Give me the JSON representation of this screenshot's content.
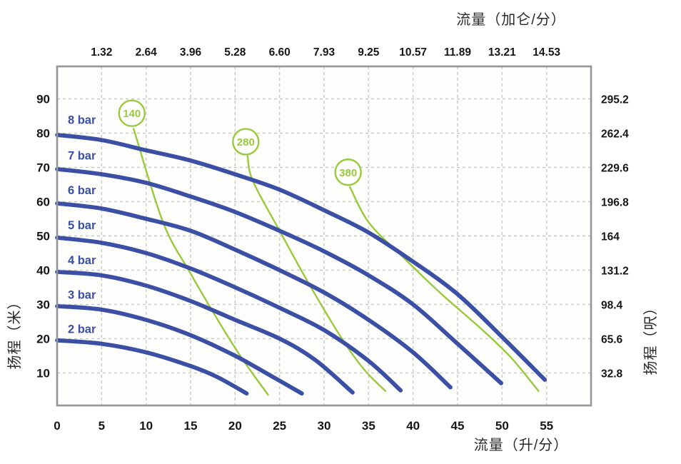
{
  "colors": {
    "curve_blue": "#3b50a4",
    "speed_green": "#99c93c",
    "grid": "#c7c9c5",
    "border": "#94979a",
    "tick_text": "#161616",
    "plot_background": "#fdfdfb"
  },
  "chart_data": {
    "type": "line",
    "description": "Pump performance curves: head vs flow for discharge pressures 2-8 bar with speed lines 140/280/380",
    "x_axis_bottom": {
      "label": "流量（升/分）",
      "unit": "L/min",
      "range": [
        0,
        60
      ],
      "tick_values": [
        0,
        5,
        10,
        15,
        20,
        25,
        30,
        35,
        40,
        45,
        50,
        55
      ]
    },
    "x_axis_top": {
      "label": "流量（加仑/分）",
      "unit": "gal/min",
      "tick_labels": [
        "1.32",
        "2.64",
        "3.96",
        "5.28",
        "6.60",
        "7.93",
        "9.25",
        "10.57",
        "11.89",
        "13.21",
        "14.53"
      ],
      "at_lpm": [
        5,
        10,
        15,
        20,
        25,
        30,
        35,
        40,
        45,
        50,
        55
      ]
    },
    "y_axis_left": {
      "label": "扬程（米）",
      "unit": "m",
      "range": [
        0.5,
        99.5
      ],
      "tick_values": [
        90,
        80,
        70,
        60,
        50,
        40,
        30,
        20,
        10
      ]
    },
    "y_axis_right": {
      "label": "扬程（呎）",
      "unit": "ft",
      "tick_labels": [
        "295.2",
        "262.4",
        "229.6",
        "196.8",
        "164",
        "131.2",
        "98.4",
        "65.6",
        "32.8"
      ],
      "at_m": [
        90,
        80,
        70,
        60,
        50,
        40,
        30,
        20,
        10
      ]
    },
    "series": [
      {
        "name": "8 bar",
        "label_at": [
          1.2,
          84.0
        ],
        "points": [
          [
            0,
            79.5
          ],
          [
            5,
            78
          ],
          [
            10,
            75
          ],
          [
            15,
            72
          ],
          [
            20,
            68
          ],
          [
            25,
            63.5
          ],
          [
            30,
            57.5
          ],
          [
            35,
            51
          ],
          [
            40,
            42.5
          ],
          [
            45,
            33
          ],
          [
            50,
            20.5
          ],
          [
            54.8,
            8
          ]
        ]
      },
      {
        "name": "7 bar",
        "label_at": [
          1.2,
          73.6
        ],
        "points": [
          [
            0,
            69.5
          ],
          [
            5,
            68
          ],
          [
            10,
            65.5
          ],
          [
            15,
            61.5
          ],
          [
            20,
            57
          ],
          [
            25,
            51.5
          ],
          [
            30,
            45.5
          ],
          [
            35,
            38.5
          ],
          [
            40,
            30
          ],
          [
            45,
            18.5
          ],
          [
            49.9,
            7
          ]
        ]
      },
      {
        "name": "6 bar",
        "label_at": [
          1.2,
          63.4
        ],
        "points": [
          [
            0,
            59.5
          ],
          [
            5,
            58
          ],
          [
            10,
            55
          ],
          [
            15,
            51.5
          ],
          [
            20,
            46
          ],
          [
            25,
            40
          ],
          [
            30,
            33.5
          ],
          [
            35,
            25.5
          ],
          [
            40,
            16
          ],
          [
            44.2,
            5.8
          ]
        ]
      },
      {
        "name": "5 bar",
        "label_at": [
          1.2,
          53.2
        ],
        "points": [
          [
            0,
            49.5
          ],
          [
            5,
            48
          ],
          [
            10,
            45
          ],
          [
            15,
            40.5
          ],
          [
            20,
            35
          ],
          [
            25,
            29
          ],
          [
            30,
            22.5
          ],
          [
            35,
            13.5
          ],
          [
            38.6,
            4.9
          ]
        ]
      },
      {
        "name": "4 bar",
        "label_at": [
          1.2,
          43.0
        ],
        "points": [
          [
            0,
            39.5
          ],
          [
            5,
            38.5
          ],
          [
            10,
            35.5
          ],
          [
            15,
            31
          ],
          [
            20,
            25.5
          ],
          [
            25,
            20
          ],
          [
            29,
            13.8
          ],
          [
            33.2,
            4.3
          ]
        ]
      },
      {
        "name": "3 bar",
        "label_at": [
          1.2,
          32.9
        ],
        "points": [
          [
            0,
            29.5
          ],
          [
            5,
            28.5
          ],
          [
            10,
            25.5
          ],
          [
            15,
            21
          ],
          [
            20,
            15
          ],
          [
            24,
            9.2
          ],
          [
            27.5,
            4
          ]
        ]
      },
      {
        "name": "2 bar",
        "label_at": [
          1.2,
          22.9
        ],
        "points": [
          [
            0,
            19.5
          ],
          [
            5,
            18.5
          ],
          [
            10,
            16
          ],
          [
            15,
            12
          ],
          [
            18,
            8.8
          ],
          [
            21.3,
            4
          ]
        ]
      }
    ],
    "speed_lines": [
      {
        "name": "140",
        "badge_center": [
          8.4,
          85.8
        ],
        "points": [
          [
            8.6,
            81.3
          ],
          [
            11.9,
            54
          ],
          [
            15,
            39
          ],
          [
            20,
            17.3
          ],
          [
            23.7,
            3.6
          ]
        ]
      },
      {
        "name": "280",
        "badge_center": [
          21.2,
          77.5
        ],
        "points": [
          [
            21.4,
            73.3
          ],
          [
            22,
            66
          ],
          [
            25,
            51.5
          ],
          [
            28.3,
            36
          ],
          [
            32,
            20
          ],
          [
            34.5,
            11
          ],
          [
            36.9,
            4.7
          ]
        ]
      },
      {
        "name": "380",
        "badge_center": [
          32.7,
          68.6
        ],
        "points": [
          [
            32.9,
            64.3
          ],
          [
            35,
            54
          ],
          [
            38.6,
            44.5
          ],
          [
            43,
            33.5
          ],
          [
            47.6,
            23
          ],
          [
            51,
            14.5
          ],
          [
            54.1,
            4.7
          ]
        ]
      }
    ]
  }
}
